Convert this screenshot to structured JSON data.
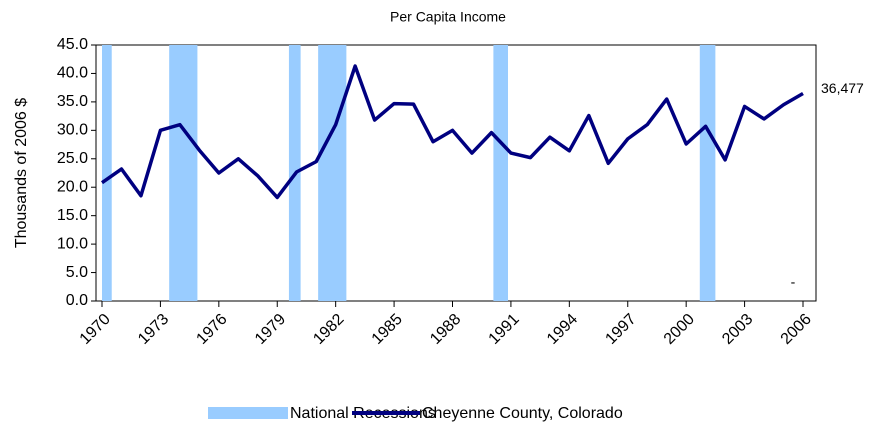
{
  "chart_data": {
    "type": "line",
    "title": "Per Capita Income",
    "y_label": "Thousands of 2006 $",
    "x": [
      1970,
      1971,
      1972,
      1973,
      1974,
      1975,
      1976,
      1977,
      1978,
      1979,
      1980,
      1981,
      1982,
      1983,
      1984,
      1985,
      1986,
      1987,
      1988,
      1989,
      1990,
      1991,
      1992,
      1993,
      1994,
      1995,
      1996,
      1997,
      1998,
      1999,
      2000,
      2001,
      2002,
      2003,
      2004,
      2005,
      2006
    ],
    "series": [
      {
        "name": "Cheyenne County, Colorado",
        "color": "#000080",
        "values": [
          20.8,
          23.2,
          18.5,
          30.0,
          31.0,
          26.5,
          22.5,
          25.0,
          22.0,
          18.2,
          22.7,
          24.5,
          31.0,
          41.3,
          31.8,
          34.7,
          34.6,
          28.0,
          30.0,
          26.0,
          29.6,
          26.0,
          25.2,
          28.8,
          26.4,
          32.6,
          24.2,
          28.5,
          31.0,
          35.5,
          27.6,
          30.7,
          24.8,
          34.2,
          32.0,
          34.5,
          36.477
        ],
        "value_labels": [
          null,
          null,
          null,
          null,
          null,
          null,
          null,
          null,
          null,
          null,
          null,
          null,
          null,
          null,
          null,
          null,
          null,
          null,
          null,
          null,
          null,
          null,
          null,
          null,
          null,
          null,
          null,
          null,
          null,
          null,
          null,
          null,
          null,
          null,
          null,
          null,
          "36,477"
        ]
      }
    ],
    "recessions": {
      "name": "National Recessions",
      "color": "#99ccff",
      "ranges": [
        [
          1970,
          1970.5
        ],
        [
          1973.45,
          1974.9
        ],
        [
          1979.6,
          1980.2
        ],
        [
          1981.1,
          1982.55
        ],
        [
          1990.1,
          1990.85
        ],
        [
          2000.7,
          2001.5
        ]
      ]
    },
    "annotation": "-",
    "xlim": [
      1970,
      2006
    ],
    "xticks": [
      1970,
      1973,
      1976,
      1979,
      1982,
      1985,
      1988,
      1991,
      1994,
      1997,
      2000,
      2003,
      2006
    ],
    "ylim": [
      0,
      45
    ],
    "yticks": [
      {
        "value": 0,
        "label": "0.0"
      },
      {
        "value": 5,
        "label": "5.0"
      },
      {
        "value": 10,
        "label": "10.0"
      },
      {
        "value": 15,
        "label": "15.0"
      },
      {
        "value": 20,
        "label": "20.0"
      },
      {
        "value": 25,
        "label": "25.0"
      },
      {
        "value": 30,
        "label": "30.0"
      },
      {
        "value": 35,
        "label": "35.0"
      },
      {
        "value": 40,
        "label": "40.0"
      },
      {
        "value": 45,
        "label": "45.0"
      }
    ]
  }
}
